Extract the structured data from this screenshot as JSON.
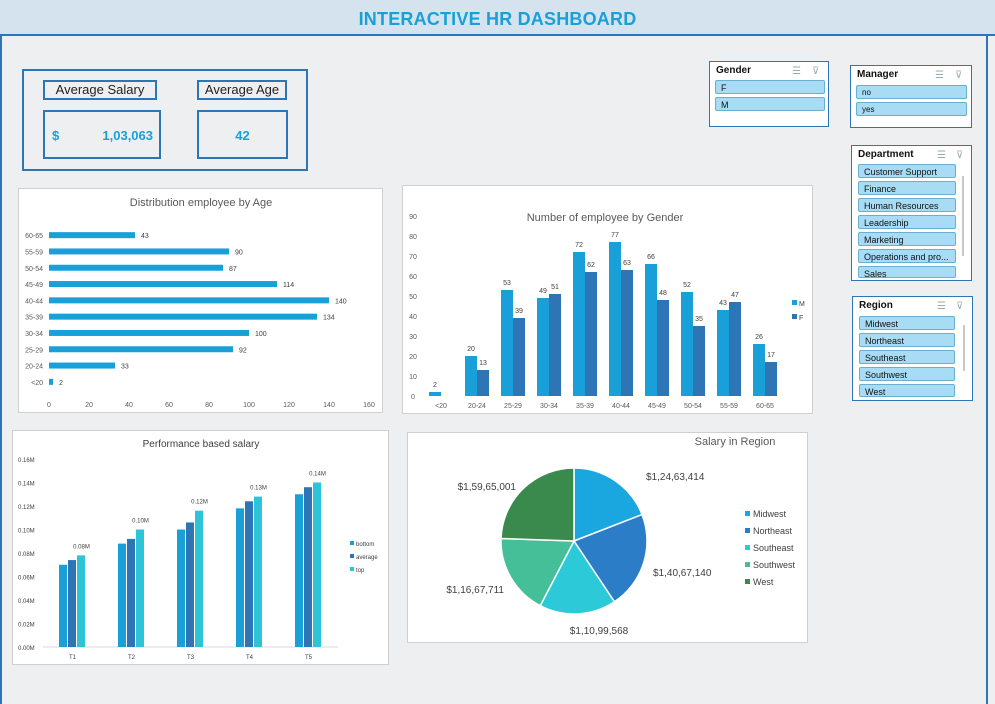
{
  "header": {
    "title": "INTERACTIVE HR DASHBOARD"
  },
  "kpi": {
    "avg_salary_label": "Average Salary",
    "avg_salary_currency": "$",
    "avg_salary_value": "1,03,063",
    "avg_age_label": "Average Age",
    "avg_age_value": "42"
  },
  "slicers": {
    "gender": {
      "title": "Gender",
      "items": [
        "F",
        "M"
      ]
    },
    "manager": {
      "title": "Manager",
      "items": [
        "no",
        "yes"
      ]
    },
    "department": {
      "title": "Department",
      "items": [
        "Customer Support",
        "Finance",
        "Human Resources",
        "Leadership",
        "Marketing",
        "Operations and pro...",
        "Sales"
      ]
    },
    "region": {
      "title": "Region",
      "items": [
        "Midwest",
        "Northeast",
        "Southeast",
        "Southwest",
        "West"
      ]
    }
  },
  "colors": {
    "accent": "#2e75b6",
    "title": "#1aa0d8",
    "bar": "#1aa0d8",
    "bar_dark": "#2e75b6",
    "bar_light": "#2ec4d8",
    "slicer_item": "#a8dcf4"
  },
  "chart_data": [
    {
      "type": "bar",
      "orientation": "horizontal",
      "title": "Distribution employee by Age",
      "categories": [
        "<20",
        "20-24",
        "25-29",
        "30-34",
        "35-39",
        "40-44",
        "45-49",
        "50-54",
        "55-59",
        "60-65"
      ],
      "values": [
        2,
        33,
        92,
        100,
        134,
        140,
        114,
        87,
        90,
        43
      ],
      "xlim": [
        0,
        160
      ],
      "xticks": [
        0,
        20,
        40,
        60,
        80,
        100,
        120,
        140,
        160
      ]
    },
    {
      "type": "bar",
      "title": "Number of employee by Gender",
      "categories": [
        "<20",
        "20-24",
        "25-29",
        "30-34",
        "35-39",
        "40-44",
        "45-49",
        "50-54",
        "55-59",
        "60-65"
      ],
      "series": [
        {
          "name": "M",
          "values": [
            2,
            20,
            53,
            49,
            72,
            77,
            66,
            52,
            43,
            26
          ]
        },
        {
          "name": "F",
          "values": [
            null,
            13,
            39,
            51,
            62,
            63,
            48,
            35,
            47,
            17
          ]
        }
      ],
      "ylim": [
        0,
        90
      ],
      "yticks": [
        0,
        10,
        20,
        30,
        40,
        50,
        60,
        70,
        80,
        90
      ],
      "legend": "right"
    },
    {
      "type": "bar",
      "title": "Performance based salary",
      "categories": [
        "T1",
        "T2",
        "T3",
        "T4",
        "T5"
      ],
      "series": [
        {
          "name": "bottom",
          "values": [
            0.07,
            0.088,
            0.1,
            0.118,
            0.13
          ]
        },
        {
          "name": "average",
          "values": [
            0.074,
            0.092,
            0.106,
            0.124,
            0.136
          ]
        },
        {
          "name": "top",
          "values": [
            0.078,
            0.1,
            0.116,
            0.128,
            0.14
          ]
        }
      ],
      "data_labels": [
        "0.08M",
        "0.10M",
        "0.12M",
        "0.13M",
        "0.14M"
      ],
      "ylim": [
        0,
        0.16
      ],
      "yticks": [
        "0.00M",
        "0.02M",
        "0.04M",
        "0.06M",
        "0.08M",
        "0.10M",
        "0.12M",
        "0.14M",
        "0.16M"
      ],
      "legend": "right"
    },
    {
      "type": "pie",
      "title": "Salary in Region",
      "categories": [
        "Midwest",
        "Northeast",
        "Southeast",
        "Southwest",
        "West"
      ],
      "values": [
        12463414,
        14067140,
        11099568,
        11667711,
        15965001
      ],
      "labels": [
        "$1,24,63,414",
        "$1,40,67,140",
        "$1,10,99,568",
        "$1,16,67,711",
        "$1,59,65,001"
      ],
      "colors": [
        "#1aa7e0",
        "#2a7dc6",
        "#2ccad8",
        "#45bf98",
        "#3a8a4e"
      ],
      "legend": "right"
    }
  ]
}
